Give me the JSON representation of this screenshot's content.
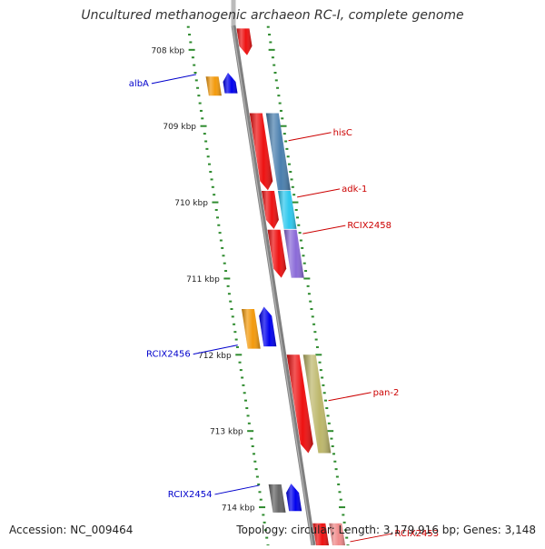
{
  "title": "Uncultured methanogenic archaeon RC-I, complete genome",
  "accession": "Accession: NC_009464",
  "summary": "Topology: circular; Length: 3,179,916 bp; Genes: 3,148",
  "colors": {
    "backbone": "#808080",
    "tick": "#2e8b2e",
    "forward_label": "#0000cc",
    "reverse_label": "#cc0000",
    "red": "#ee1111",
    "blue": "#0000ee",
    "orange": "#f39a0c",
    "grey": "#666666",
    "steelblue": "#4a7fae",
    "cyan": "#2ec8ee",
    "purple": "#8a6ad8",
    "khaki": "#bdb76b",
    "pink": "#f08a8a"
  },
  "chart_data": {
    "type": "genome map",
    "axis_unit": "kbp",
    "axis_ticks": [
      "708 kbp",
      "709 kbp",
      "710 kbp",
      "711 kbp",
      "712 kbp",
      "713 kbp",
      "714 kbp"
    ],
    "axis_ticks_kbp": [
      708,
      709,
      710,
      711,
      712,
      713,
      714
    ],
    "view_range_kbp": [
      707.68,
      714.5
    ],
    "labeled_genes": [
      {
        "name": "albA",
        "strand": "+",
        "kbp": 708.37
      },
      {
        "name": "hisC",
        "strand": "-",
        "kbp": 709.12
      },
      {
        "name": "adk-1",
        "strand": "-",
        "kbp": 709.86
      },
      {
        "name": "RCIX2458",
        "strand": "-",
        "kbp": 710.34
      },
      {
        "name": "RCIX2456",
        "strand": "+",
        "kbp": 711.92
      },
      {
        "name": "pan-2",
        "strand": "-",
        "kbp": 712.53
      },
      {
        "name": "RCIX2454",
        "strand": "+",
        "kbp": 713.76
      },
      {
        "name": "RCIX2453",
        "strand": "-",
        "kbp": 714.38
      }
    ],
    "features": [
      {
        "track": 1,
        "start": 707.72,
        "end": 708.07,
        "color": "red",
        "dir": "down"
      },
      {
        "track": -2,
        "start": 708.35,
        "end": 708.6,
        "color": "orange",
        "dir": "none"
      },
      {
        "track": -1,
        "start": 708.3,
        "end": 708.57,
        "color": "blue",
        "dir": "up"
      },
      {
        "track": 1,
        "start": 708.83,
        "end": 709.84,
        "color": "red",
        "dir": "down"
      },
      {
        "track": 2,
        "start": 708.83,
        "end": 709.84,
        "color": "steelblue",
        "dir": "none"
      },
      {
        "track": 1,
        "start": 709.85,
        "end": 710.35,
        "color": "red",
        "dir": "down"
      },
      {
        "track": 2,
        "start": 709.85,
        "end": 710.35,
        "color": "cyan",
        "dir": "none"
      },
      {
        "track": 1,
        "start": 710.36,
        "end": 710.99,
        "color": "red",
        "dir": "down"
      },
      {
        "track": 2,
        "start": 710.36,
        "end": 710.99,
        "color": "purple",
        "dir": "none"
      },
      {
        "track": -2,
        "start": 711.4,
        "end": 711.92,
        "color": "orange",
        "dir": "none"
      },
      {
        "track": -1,
        "start": 711.37,
        "end": 711.89,
        "color": "blue",
        "dir": "up"
      },
      {
        "track": 1,
        "start": 712.0,
        "end": 713.29,
        "color": "red",
        "dir": "down"
      },
      {
        "track": 2,
        "start": 712.0,
        "end": 713.29,
        "color": "khaki",
        "dir": "none"
      },
      {
        "track": -2,
        "start": 713.7,
        "end": 714.07,
        "color": "grey",
        "dir": "none"
      },
      {
        "track": -1,
        "start": 713.69,
        "end": 714.05,
        "color": "blue",
        "dir": "up"
      },
      {
        "track": 1,
        "start": 714.21,
        "end": 714.5,
        "color": "red",
        "dir": "none"
      },
      {
        "track": 2,
        "start": 714.21,
        "end": 714.5,
        "color": "pink",
        "dir": "none"
      }
    ]
  }
}
